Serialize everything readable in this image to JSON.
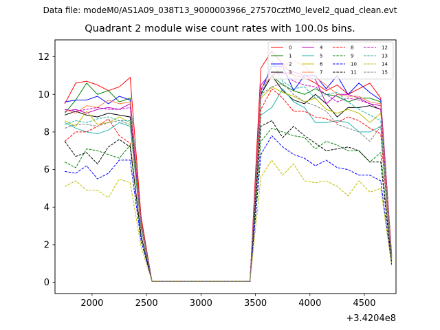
{
  "supertitle": "Data file: modeM0/AS1A09_038T13_9000003966_27570cztM0_level2_quad_clean.evt",
  "chart_data": {
    "type": "line",
    "title": "Quadrant 2 module wise count rates with 100.0s bins.",
    "xlabel": "",
    "ylabel": "",
    "x_offset_label": "+3.4204e8",
    "xlim": [
      1660,
      4790
    ],
    "ylim": [
      -0.6,
      12.9
    ],
    "xticks": [
      2000,
      2500,
      3000,
      3500,
      4000,
      4500
    ],
    "yticks": [
      0,
      2,
      4,
      6,
      8,
      10,
      12
    ],
    "legend_position": "top-right",
    "x": [
      1750,
      1850,
      1950,
      2050,
      2150,
      2250,
      2350,
      2450,
      2550,
      2650,
      2750,
      2850,
      2950,
      3050,
      3150,
      3250,
      3350,
      3450,
      3550,
      3650,
      3750,
      3850,
      3950,
      4050,
      4150,
      4250,
      4350,
      4450,
      4550,
      4650,
      4750
    ],
    "series": [
      {
        "name": "0",
        "color": "#ff0000",
        "dash": "solid",
        "values": [
          9.5,
          10.6,
          10.7,
          10.5,
          10.2,
          10.4,
          10.9,
          3.5,
          0.05,
          0.05,
          0.05,
          0.05,
          0.05,
          0.05,
          0.05,
          0.05,
          0.05,
          0.05,
          11.4,
          12.3,
          11.6,
          11.0,
          10.9,
          10.6,
          10.2,
          10.5,
          10.0,
          10.3,
          10.6,
          9.8,
          1.5
        ]
      },
      {
        "name": "1",
        "color": "#008000",
        "dash": "solid",
        "values": [
          9.0,
          9.7,
          10.6,
          10.0,
          10.2,
          9.6,
          9.8,
          3.3,
          0.05,
          0.05,
          0.05,
          0.05,
          0.05,
          0.05,
          0.05,
          0.05,
          0.05,
          0.05,
          10.0,
          11.0,
          10.5,
          10.2,
          10.0,
          10.3,
          10.0,
          9.9,
          9.6,
          9.8,
          9.8,
          9.6,
          1.4
        ]
      },
      {
        "name": "2",
        "color": "#0000ff",
        "dash": "solid",
        "values": [
          9.6,
          9.7,
          9.7,
          9.9,
          9.5,
          9.9,
          9.7,
          3.2,
          0.05,
          0.05,
          0.05,
          0.05,
          0.05,
          0.05,
          0.05,
          0.05,
          0.05,
          0.05,
          10.2,
          11.5,
          11.5,
          10.2,
          11.0,
          11.0,
          10.3,
          11.0,
          10.0,
          10.6,
          10.1,
          9.7,
          1.4
        ]
      },
      {
        "name": "3",
        "color": "#000000",
        "dash": "solid",
        "values": [
          8.9,
          9.1,
          8.9,
          8.8,
          9.0,
          8.9,
          8.8,
          3.1,
          0.05,
          0.05,
          0.05,
          0.05,
          0.05,
          0.05,
          0.05,
          0.05,
          0.05,
          0.05,
          10.0,
          11.0,
          10.2,
          9.7,
          9.5,
          10.0,
          9.5,
          8.8,
          9.3,
          9.3,
          9.4,
          9.2,
          1.3
        ]
      },
      {
        "name": "4",
        "color": "#bf00bf",
        "dash": "solid",
        "values": [
          9.1,
          9.2,
          9.0,
          9.2,
          9.3,
          9.2,
          9.5,
          3.2,
          0.05,
          0.05,
          0.05,
          0.05,
          0.05,
          0.05,
          0.05,
          0.05,
          0.05,
          0.05,
          10.5,
          11.2,
          11.1,
          11.2,
          11.0,
          10.8,
          9.5,
          10.0,
          10.0,
          9.8,
          9.5,
          9.4,
          1.4
        ]
      },
      {
        "name": "5",
        "color": "#20b2aa",
        "dash": "solid",
        "values": [
          8.5,
          8.2,
          8.0,
          7.9,
          8.1,
          8.5,
          8.3,
          2.9,
          0.05,
          0.05,
          0.05,
          0.05,
          0.05,
          0.05,
          0.05,
          0.05,
          0.05,
          0.05,
          8.9,
          9.3,
          10.3,
          9.6,
          9.3,
          8.5,
          8.5,
          8.6,
          8.5,
          8.0,
          8.0,
          8.3,
          1.2
        ]
      },
      {
        "name": "6",
        "color": "#bfbf00",
        "dash": "solid",
        "values": [
          8.6,
          8.3,
          9.1,
          8.4,
          8.5,
          8.8,
          8.5,
          3.0,
          0.05,
          0.05,
          0.05,
          0.05,
          0.05,
          0.05,
          0.05,
          0.05,
          0.05,
          0.05,
          9.8,
          10.4,
          10.1,
          9.9,
          9.6,
          9.8,
          9.2,
          9.0,
          9.2,
          9.0,
          8.5,
          9.0,
          1.3
        ]
      },
      {
        "name": "7",
        "color": "#ff7f50",
        "dash": "solid",
        "values": [
          9.2,
          9.0,
          9.4,
          9.3,
          9.7,
          9.5,
          9.6,
          3.2,
          0.05,
          0.05,
          0.05,
          0.05,
          0.05,
          0.05,
          0.05,
          0.05,
          0.05,
          0.05,
          10.3,
          11.0,
          11.5,
          11.8,
          11.5,
          10.9,
          10.5,
          10.0,
          9.9,
          9.9,
          9.6,
          9.5,
          1.4
        ]
      },
      {
        "name": "8",
        "color": "#ff0000",
        "dash": "dashed",
        "values": [
          7.5,
          8.0,
          8.0,
          8.3,
          8.7,
          7.8,
          7.4,
          2.5,
          0.05,
          0.05,
          0.05,
          0.05,
          0.05,
          0.05,
          0.05,
          0.05,
          0.05,
          0.05,
          9.2,
          10.3,
          9.8,
          9.1,
          9.1,
          8.8,
          8.7,
          8.5,
          8.8,
          8.6,
          8.2,
          7.9,
          1.1
        ]
      },
      {
        "name": "9",
        "color": "#008000",
        "dash": "dashed",
        "values": [
          6.4,
          6.1,
          7.1,
          7.0,
          6.8,
          6.6,
          7.3,
          2.4,
          0.05,
          0.05,
          0.05,
          0.05,
          0.05,
          0.05,
          0.05,
          0.05,
          0.05,
          0.05,
          7.5,
          8.2,
          8.0,
          7.8,
          7.7,
          7.1,
          7.5,
          7.3,
          7.0,
          7.0,
          6.4,
          6.9,
          1.0
        ]
      },
      {
        "name": "10",
        "color": "#0000ff",
        "dash": "dashed",
        "values": [
          5.9,
          5.8,
          6.2,
          5.5,
          5.8,
          6.5,
          6.5,
          2.2,
          0.05,
          0.05,
          0.05,
          0.05,
          0.05,
          0.05,
          0.05,
          0.05,
          0.05,
          0.05,
          6.8,
          7.8,
          7.2,
          6.8,
          6.6,
          6.2,
          6.5,
          6.1,
          6.0,
          5.7,
          5.7,
          5.4,
          0.9
        ]
      },
      {
        "name": "11",
        "color": "#000000",
        "dash": "dashed",
        "values": [
          7.5,
          6.7,
          6.9,
          6.3,
          7.2,
          7.6,
          7.2,
          2.5,
          0.05,
          0.05,
          0.05,
          0.05,
          0.05,
          0.05,
          0.05,
          0.05,
          0.05,
          0.05,
          8.3,
          8.6,
          7.7,
          8.3,
          7.8,
          7.4,
          7.0,
          7.1,
          7.2,
          7.0,
          6.4,
          6.4,
          1.0
        ]
      },
      {
        "name": "12",
        "color": "#bf00bf",
        "dash": "dashed",
        "values": [
          9.2,
          9.1,
          9.2,
          9.3,
          9.2,
          9.2,
          9.3,
          3.1,
          0.05,
          0.05,
          0.05,
          0.05,
          0.05,
          0.05,
          0.05,
          0.05,
          0.05,
          0.05,
          10.1,
          11.0,
          11.2,
          10.7,
          10.5,
          10.4,
          10.0,
          9.6,
          9.8,
          9.7,
          9.5,
          9.2,
          1.3
        ]
      },
      {
        "name": "13",
        "color": "#20b2aa",
        "dash": "dashed",
        "values": [
          8.4,
          8.6,
          8.5,
          8.7,
          8.8,
          8.6,
          8.6,
          3.0,
          0.05,
          0.05,
          0.05,
          0.05,
          0.05,
          0.05,
          0.05,
          0.05,
          0.05,
          0.05,
          9.8,
          11.8,
          10.7,
          10.3,
          10.4,
          9.8,
          10.0,
          10.1,
          9.6,
          9.2,
          8.9,
          8.6,
          1.2
        ]
      },
      {
        "name": "14",
        "color": "#bfbf00",
        "dash": "dashed",
        "values": [
          5.1,
          5.4,
          4.9,
          4.9,
          4.5,
          5.5,
          5.3,
          1.9,
          0.05,
          0.05,
          0.05,
          0.05,
          0.05,
          0.05,
          0.05,
          0.05,
          0.05,
          0.05,
          5.6,
          6.5,
          5.7,
          6.3,
          5.4,
          5.3,
          5.4,
          5.1,
          4.6,
          5.4,
          4.8,
          5.0,
          0.9
        ]
      },
      {
        "name": "15",
        "color": "#808080",
        "dash": "dashed",
        "values": [
          8.2,
          8.4,
          8.4,
          8.3,
          8.5,
          8.6,
          8.4,
          2.9,
          0.05,
          0.05,
          0.05,
          0.05,
          0.05,
          0.05,
          0.05,
          0.05,
          0.05,
          0.05,
          10.0,
          10.4,
          10.6,
          10.0,
          9.6,
          9.4,
          9.1,
          8.4,
          8.2,
          8.0,
          7.5,
          8.3,
          1.2
        ]
      }
    ]
  }
}
